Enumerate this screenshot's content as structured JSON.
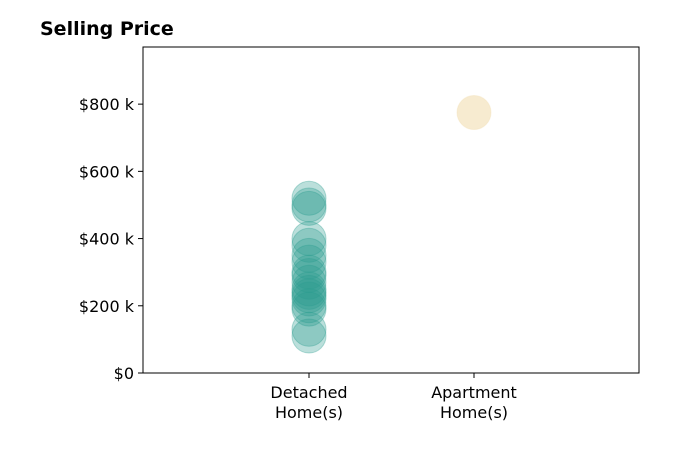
{
  "chart_data": {
    "type": "scatter",
    "title": "Selling Price",
    "xlabel": "",
    "ylabel": "",
    "categories": [
      "Detached\nHome(s)",
      "Apartment\nHome(s)"
    ],
    "ylim": [
      0,
      970000
    ],
    "yticks": [
      0,
      200000,
      400000,
      600000,
      800000
    ],
    "ytick_labels": [
      "$0",
      "$200 k",
      "$400 k",
      "$600 k",
      "$800 k"
    ],
    "grid": false,
    "legend": "none",
    "series": [
      {
        "category": "Detached\nHome(s)",
        "color": "#2a9d8f",
        "values": [
          520000,
          500000,
          490000,
          400000,
          380000,
          350000,
          330000,
          300000,
          290000,
          270000,
          250000,
          240000,
          230000,
          220000,
          200000,
          190000,
          130000,
          110000
        ]
      },
      {
        "category": "Apartment\nHome(s)",
        "color": "#f1ddb0",
        "values": [
          775000
        ]
      }
    ]
  }
}
